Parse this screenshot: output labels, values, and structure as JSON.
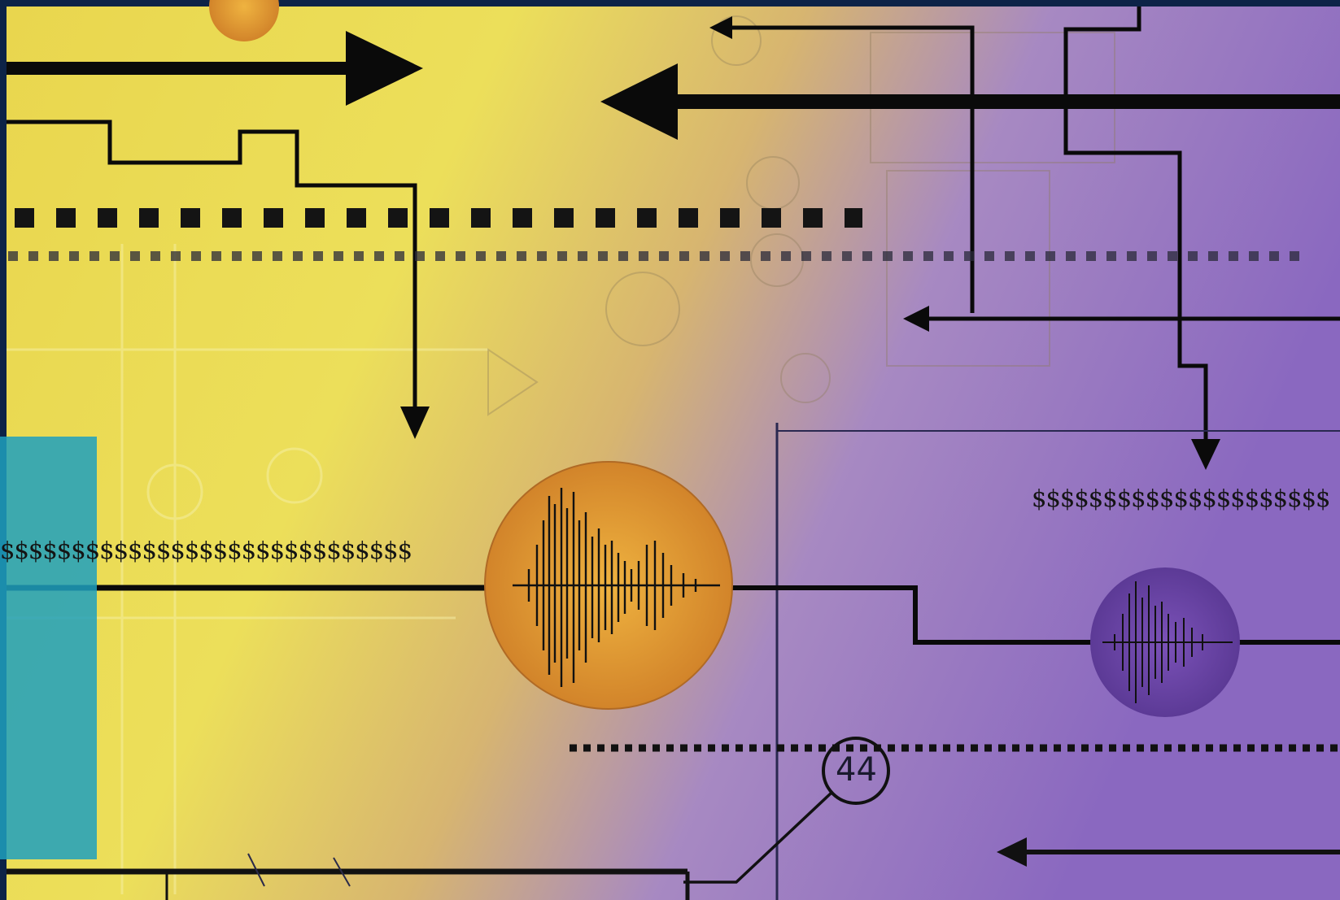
{
  "image": {
    "colors": {
      "frame": "#0d2347",
      "yellow": "#e8dc52",
      "orange": "#d99a3a",
      "purple": "#8a68c0",
      "teal": "#1fa0be",
      "ink": "#111111"
    },
    "dollar_left": "$$$$$$$$$$$$$$$$$$$$$$$$$$$$$",
    "dollar_right": "$$$$$$$$$$$$$$$$$$$$$",
    "circle_number": "44"
  }
}
